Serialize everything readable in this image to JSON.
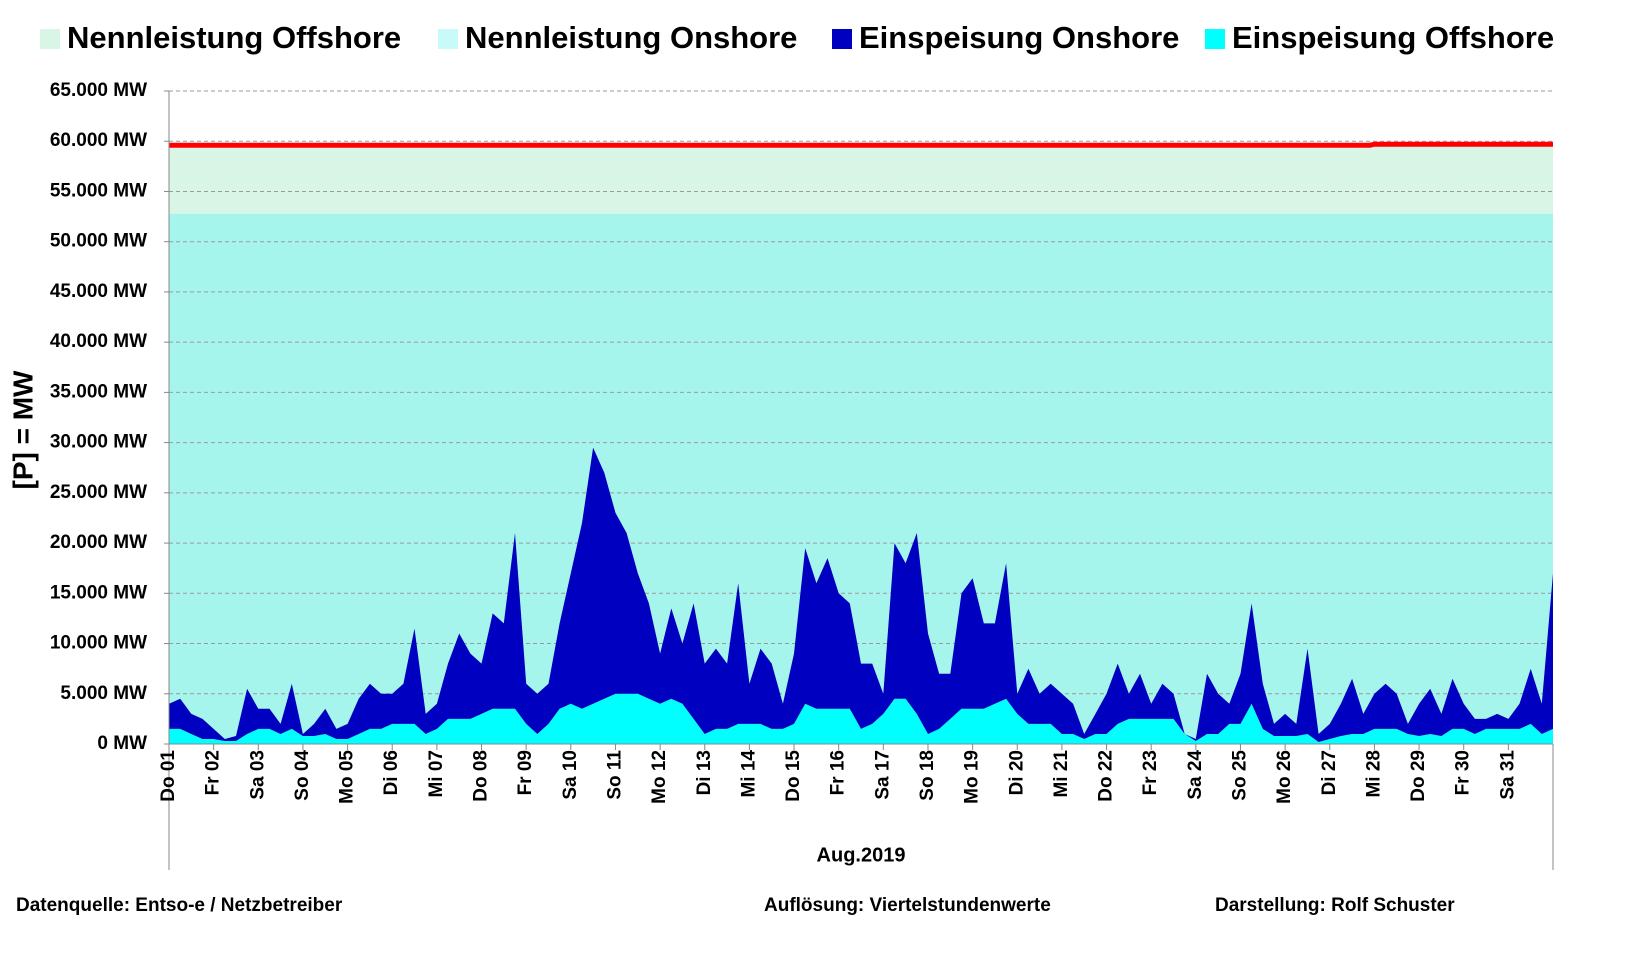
{
  "chart_data": {
    "type": "stacked-area",
    "ylabel": "[P] = MW",
    "xlabel": "Aug.2019",
    "footer": [
      "Datenquelle:  Entso-e  / Netzbetreiber",
      "Auflösung: Viertelstundenwerte",
      "Darstellung: Rolf Schuster"
    ],
    "xlim": [
      0,
      31
    ],
    "xticks": [
      {
        "value": 0,
        "label": "Do 01"
      },
      {
        "value": 1,
        "label": "Fr 02"
      },
      {
        "value": 2,
        "label": "Sa 03"
      },
      {
        "value": 3,
        "label": "So 04"
      },
      {
        "value": 4,
        "label": "Mo 05"
      },
      {
        "value": 5,
        "label": "Di 06"
      },
      {
        "value": 6,
        "label": "Mi 07"
      },
      {
        "value": 7,
        "label": "Do 08"
      },
      {
        "value": 8,
        "label": "Fr 09"
      },
      {
        "value": 9,
        "label": "Sa 10"
      },
      {
        "value": 10,
        "label": "So 11"
      },
      {
        "value": 11,
        "label": "Mo 12"
      },
      {
        "value": 12,
        "label": "Di 13"
      },
      {
        "value": 13,
        "label": "Mi 14"
      },
      {
        "value": 14,
        "label": "Do 15"
      },
      {
        "value": 15,
        "label": "Fr 16"
      },
      {
        "value": 16,
        "label": "Sa 17"
      },
      {
        "value": 17,
        "label": "So 18"
      },
      {
        "value": 18,
        "label": "Mo 19"
      },
      {
        "value": 19,
        "label": "Di 20"
      },
      {
        "value": 20,
        "label": "Mi 21"
      },
      {
        "value": 21,
        "label": "Do 22"
      },
      {
        "value": 22,
        "label": "Fr 23"
      },
      {
        "value": 23,
        "label": "Sa 24"
      },
      {
        "value": 24,
        "label": "So 25"
      },
      {
        "value": 25,
        "label": "Mo 26"
      },
      {
        "value": 26,
        "label": "Di 27"
      },
      {
        "value": 27,
        "label": "Mi 28"
      },
      {
        "value": 28,
        "label": "Do 29"
      },
      {
        "value": 29,
        "label": "Fr 30"
      },
      {
        "value": 30,
        "label": "Sa 31"
      }
    ],
    "ylim": [
      0,
      65000
    ],
    "yticks": [
      {
        "value": 0,
        "label": "0 MW"
      },
      {
        "value": 5000,
        "label": "5.000 MW"
      },
      {
        "value": 10000,
        "label": "10.000 MW"
      },
      {
        "value": 15000,
        "label": "15.000 MW"
      },
      {
        "value": 20000,
        "label": "20.000 MW"
      },
      {
        "value": 25000,
        "label": "25.000 MW"
      },
      {
        "value": 30000,
        "label": "30.000 MW"
      },
      {
        "value": 35000,
        "label": "35.000 MW"
      },
      {
        "value": 40000,
        "label": "40.000 MW"
      },
      {
        "value": 45000,
        "label": "45.000 MW"
      },
      {
        "value": 50000,
        "label": "50.000 MW"
      },
      {
        "value": 55000,
        "label": "55.000 MW"
      },
      {
        "value": 60000,
        "label": "60.000 MW"
      },
      {
        "value": 65000,
        "label": "65.000 MW"
      }
    ],
    "grid": true,
    "x": [
      0,
      0.25,
      0.5,
      0.75,
      1,
      1.25,
      1.5,
      1.75,
      2,
      2.25,
      2.5,
      2.75,
      3,
      3.25,
      3.5,
      3.75,
      4,
      4.25,
      4.5,
      4.75,
      5,
      5.25,
      5.5,
      5.75,
      6,
      6.25,
      6.5,
      6.75,
      7,
      7.25,
      7.5,
      7.75,
      8,
      8.25,
      8.5,
      8.75,
      9,
      9.25,
      9.5,
      9.75,
      10,
      10.25,
      10.5,
      10.75,
      11,
      11.25,
      11.5,
      11.75,
      12,
      12.25,
      12.5,
      12.75,
      13,
      13.25,
      13.5,
      13.75,
      14,
      14.25,
      14.5,
      14.75,
      15,
      15.25,
      15.5,
      15.75,
      16,
      16.25,
      16.5,
      16.75,
      17,
      17.25,
      17.5,
      17.75,
      18,
      18.25,
      18.5,
      18.75,
      19,
      19.25,
      19.5,
      19.75,
      20,
      20.25,
      20.5,
      20.75,
      21,
      21.25,
      21.5,
      21.75,
      22,
      22.25,
      22.5,
      22.75,
      23,
      23.25,
      23.5,
      23.75,
      24,
      24.25,
      24.5,
      24.75,
      25,
      25.25,
      25.5,
      25.75,
      26,
      26.25,
      26.5,
      26.75,
      27,
      27.25,
      27.5,
      27.75,
      28,
      28.25,
      28.5,
      28.75,
      29,
      29.25,
      29.5,
      29.75,
      30,
      30.25,
      30.5,
      30.75,
      31
    ],
    "series": [
      {
        "name": "Nennleistung Offshore",
        "color": "#d8f5e6",
        "line_color": "#ff0000",
        "x": [
          0,
          26.9,
          27,
          31
        ],
        "values": [
          6800,
          6800,
          6900,
          6900
        ]
      },
      {
        "name": "Nennleistung Onshore",
        "color": "#a6f5ec",
        "legend_color": "#c8fafa",
        "x": [
          0,
          26.9,
          27,
          31
        ],
        "values": [
          52800,
          52800,
          52800,
          52800
        ]
      },
      {
        "name": "Einspeisung Onshore",
        "color": "#0000c0",
        "values": [
          2500,
          3000,
          2000,
          2000,
          1000,
          200,
          500,
          4500,
          2000,
          2000,
          1000,
          4500,
          200,
          1200,
          2500,
          1000,
          1500,
          3500,
          4500,
          3500,
          3000,
          4000,
          9500,
          2000,
          2500,
          5500,
          8500,
          6500,
          5000,
          9500,
          8500,
          17500,
          4000,
          4000,
          4000,
          8500,
          13000,
          18500,
          25500,
          22500,
          18000,
          16000,
          12000,
          9500,
          5000,
          9000,
          6000,
          11500,
          7000,
          8000,
          6500,
          14000,
          4000,
          7500,
          6500,
          2500,
          7000,
          15500,
          12500,
          15000,
          11500,
          10500,
          6500,
          6000,
          2000,
          15500,
          13500,
          18000,
          10000,
          5500,
          4500,
          11500,
          13000,
          8500,
          8000,
          13500,
          2000,
          5500,
          3000,
          4000,
          4000,
          3000,
          500,
          2000,
          4000,
          6000,
          2500,
          4500,
          1500,
          3500,
          2500,
          0,
          200,
          6000,
          4000,
          2000,
          5000,
          10000,
          4500,
          1200,
          2200,
          1200,
          8500,
          800,
          1500,
          3200,
          5500,
          2000,
          3500,
          4500,
          3500,
          1000,
          3200,
          4500,
          2200,
          5000,
          2500,
          1500,
          1000,
          1500,
          1000,
          2500,
          5500,
          3000,
          15500
        ]
      },
      {
        "name": "Einspeisung Offshore",
        "color": "#00ffff",
        "values": [
          1500,
          1500,
          1000,
          500,
          500,
          300,
          300,
          1000,
          1500,
          1500,
          1000,
          1500,
          800,
          800,
          1000,
          500,
          500,
          1000,
          1500,
          1500,
          2000,
          2000,
          2000,
          1000,
          1500,
          2500,
          2500,
          2500,
          3000,
          3500,
          3500,
          3500,
          2000,
          1000,
          2000,
          3500,
          4000,
          3500,
          4000,
          4500,
          5000,
          5000,
          5000,
          4500,
          4000,
          4500,
          4000,
          2500,
          1000,
          1500,
          1500,
          2000,
          2000,
          2000,
          1500,
          1500,
          2000,
          4000,
          3500,
          3500,
          3500,
          3500,
          1500,
          2000,
          3000,
          4500,
          4500,
          3000,
          1000,
          1500,
          2500,
          3500,
          3500,
          3500,
          4000,
          4500,
          3000,
          2000,
          2000,
          2000,
          1000,
          1000,
          500,
          1000,
          1000,
          2000,
          2500,
          2500,
          2500,
          2500,
          2500,
          1000,
          300,
          1000,
          1000,
          2000,
          2000,
          4000,
          1500,
          800,
          800,
          800,
          1000,
          200,
          500,
          800,
          1000,
          1000,
          1500,
          1500,
          1500,
          1000,
          800,
          1000,
          800,
          1500,
          1500,
          1000,
          1500,
          1500,
          1500,
          1500,
          2000,
          1000,
          1500
        ]
      }
    ]
  }
}
